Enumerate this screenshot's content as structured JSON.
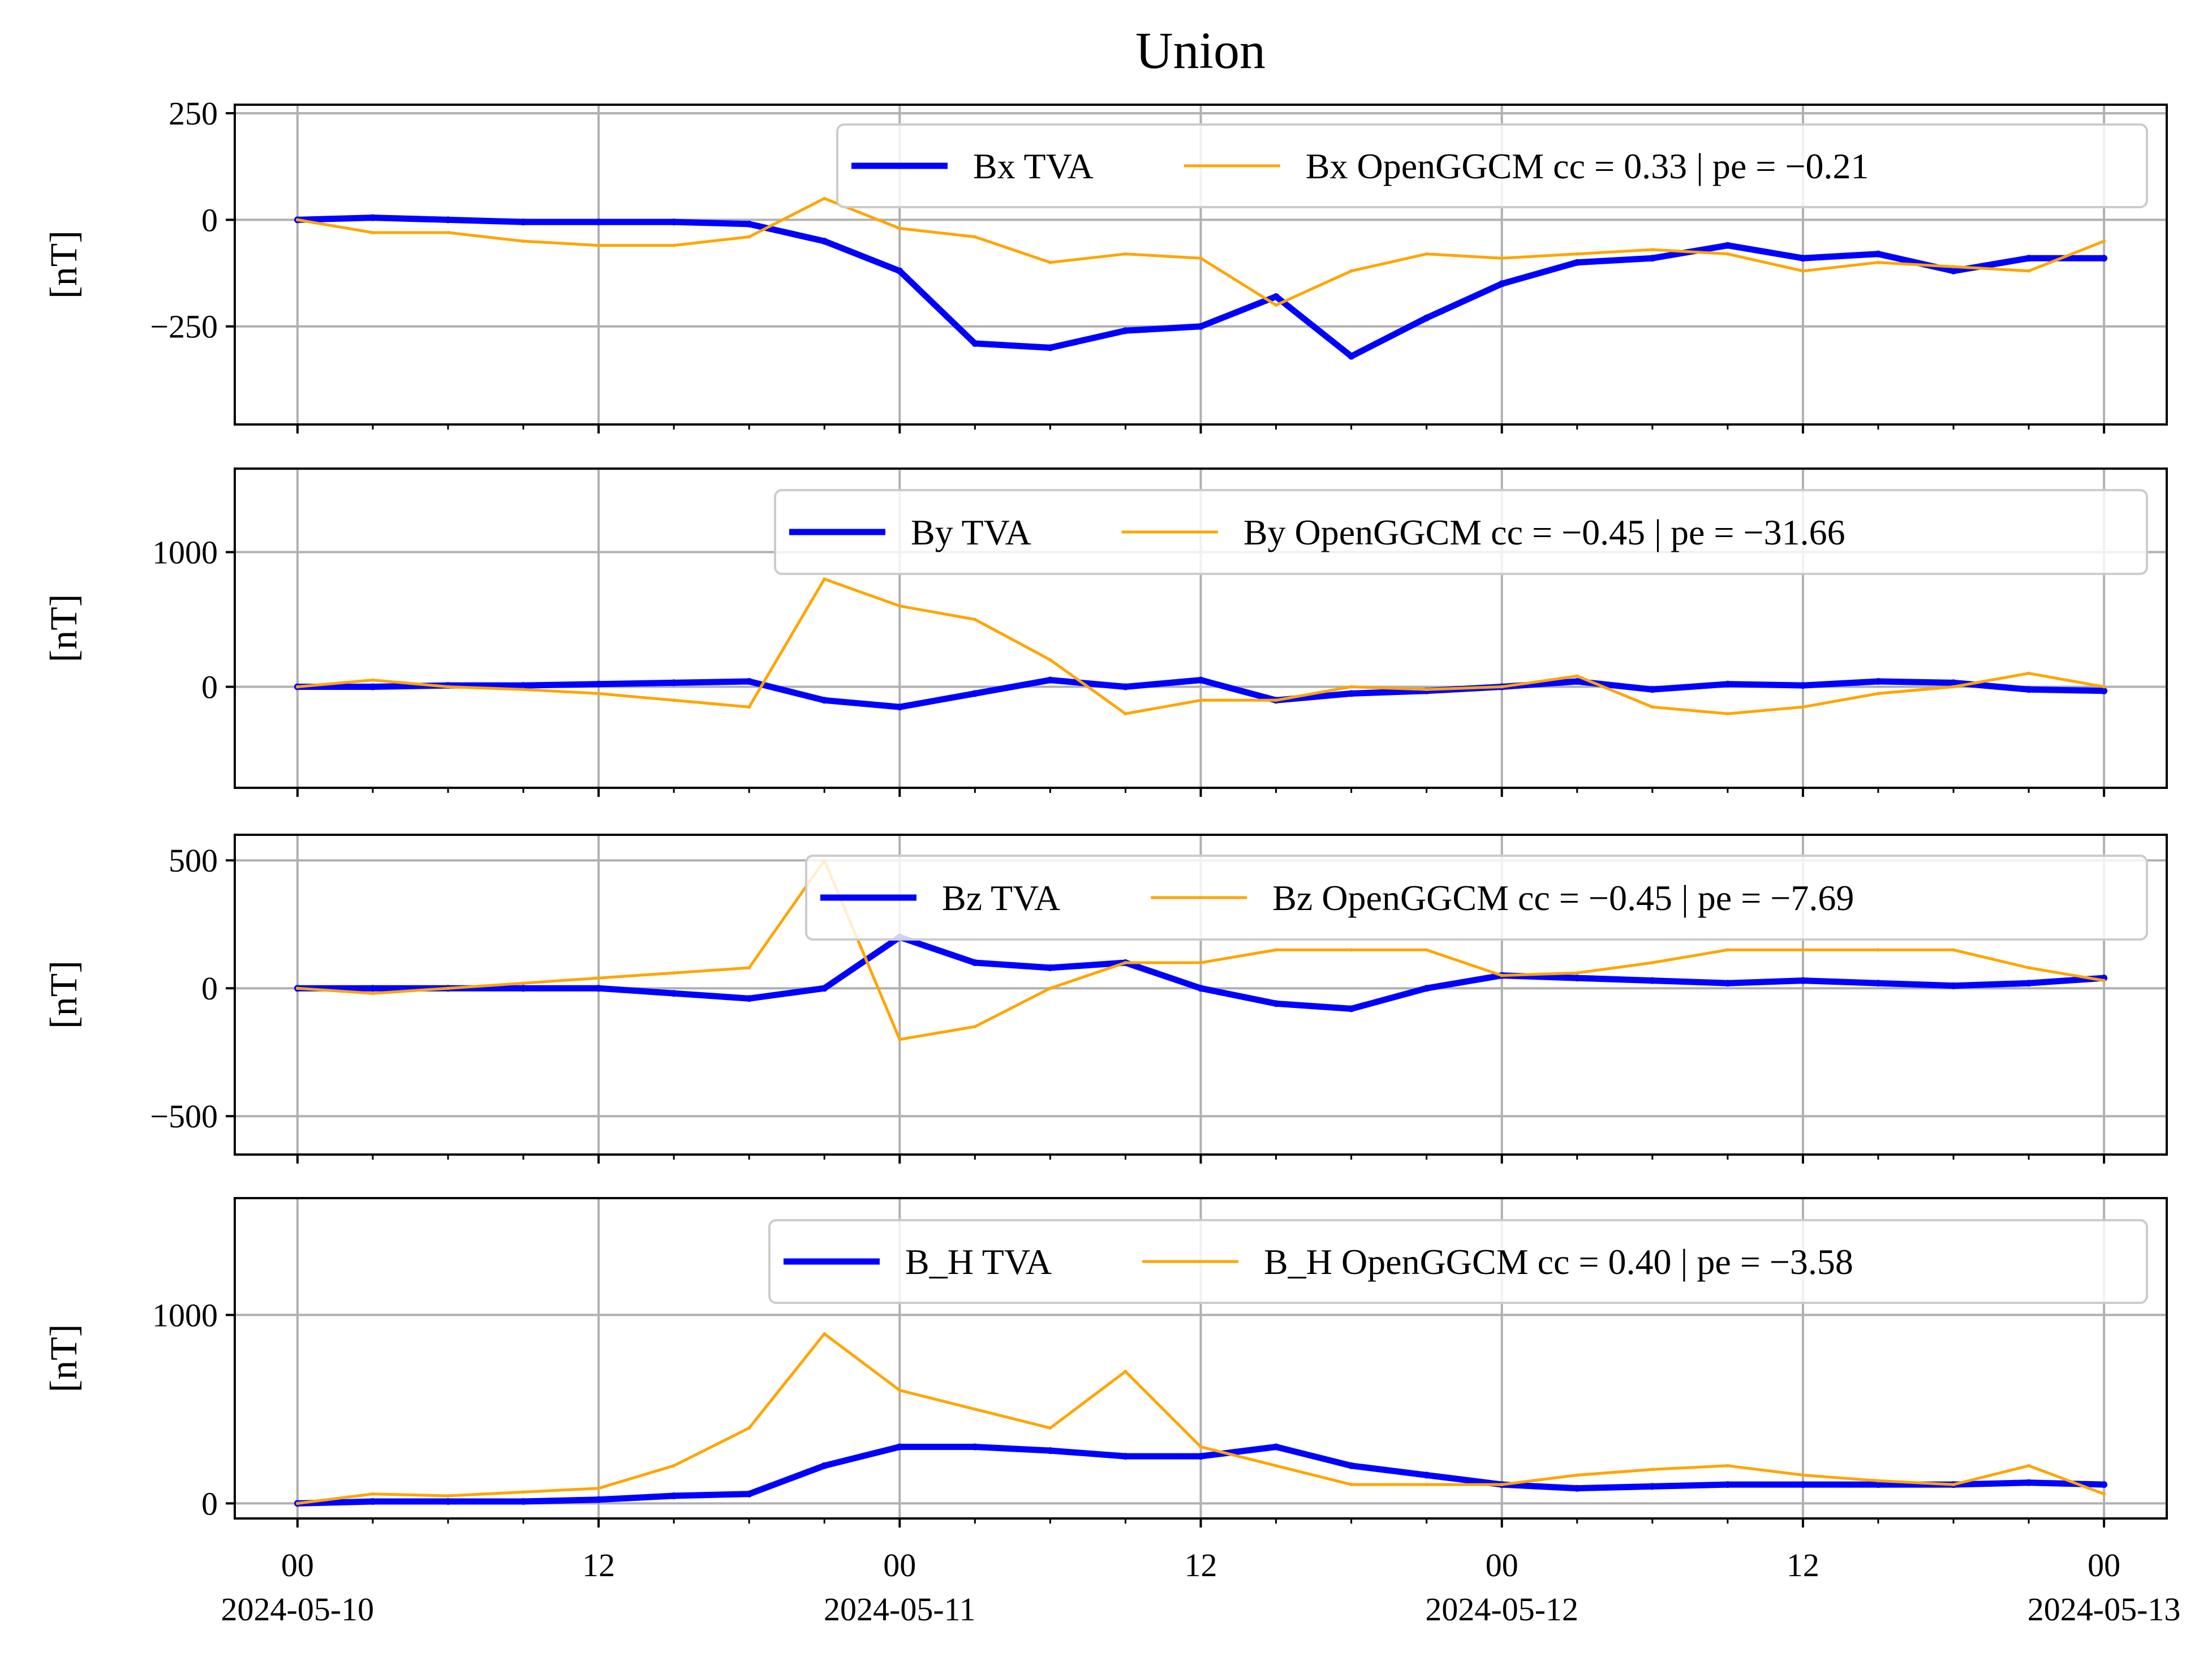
{
  "title": "Union",
  "chart_data": [
    {
      "type": "line",
      "ylabel": "[nT]",
      "ylim": [
        -480,
        270
      ],
      "yticks": [
        250,
        0,
        -250
      ],
      "ytick_labels": [
        "250",
        "0",
        "−250"
      ],
      "grid": true,
      "legend_placement": "top-right",
      "x": [
        "2024-05-10 00:00",
        "2024-05-10 03:00",
        "2024-05-10 06:00",
        "2024-05-10 09:00",
        "2024-05-10 12:00",
        "2024-05-10 15:00",
        "2024-05-10 18:00",
        "2024-05-10 21:00",
        "2024-05-11 00:00",
        "2024-05-11 03:00",
        "2024-05-11 06:00",
        "2024-05-11 09:00",
        "2024-05-11 12:00",
        "2024-05-11 15:00",
        "2024-05-11 18:00",
        "2024-05-11 21:00",
        "2024-05-12 00:00",
        "2024-05-12 03:00",
        "2024-05-12 06:00",
        "2024-05-12 09:00",
        "2024-05-12 12:00",
        "2024-05-12 15:00",
        "2024-05-12 18:00",
        "2024-05-12 21:00",
        "2024-05-13 00:00"
      ],
      "series": [
        {
          "name": "Bx TVA",
          "color": "#0000ff",
          "values": [
            0,
            5,
            0,
            -5,
            -5,
            -5,
            -10,
            -50,
            -120,
            -290,
            -300,
            -260,
            -250,
            -180,
            -320,
            -230,
            -150,
            -100,
            -90,
            -60,
            -90,
            -80,
            -120,
            -90,
            -90
          ]
        },
        {
          "name": "Bx OpenGGCM cc = 0.33 | pe = −0.21",
          "color": "#ffa500",
          "values": [
            0,
            -30,
            -30,
            -50,
            -60,
            -60,
            -40,
            50,
            -20,
            -40,
            -100,
            -80,
            -90,
            -200,
            -120,
            -80,
            -90,
            -80,
            -70,
            -80,
            -120,
            -100,
            -110,
            -120,
            -50
          ]
        }
      ]
    },
    {
      "type": "line",
      "ylabel": "[nT]",
      "ylim": [
        -750,
        1620
      ],
      "yticks": [
        1000,
        0
      ],
      "ytick_labels": [
        "1000",
        "0"
      ],
      "grid": true,
      "legend_placement": "top-right",
      "x": [
        "2024-05-10 00:00",
        "2024-05-10 03:00",
        "2024-05-10 06:00",
        "2024-05-10 09:00",
        "2024-05-10 12:00",
        "2024-05-10 15:00",
        "2024-05-10 18:00",
        "2024-05-10 21:00",
        "2024-05-11 00:00",
        "2024-05-11 03:00",
        "2024-05-11 06:00",
        "2024-05-11 09:00",
        "2024-05-11 12:00",
        "2024-05-11 15:00",
        "2024-05-11 18:00",
        "2024-05-11 21:00",
        "2024-05-12 00:00",
        "2024-05-12 03:00",
        "2024-05-12 06:00",
        "2024-05-12 09:00",
        "2024-05-12 12:00",
        "2024-05-12 15:00",
        "2024-05-12 18:00",
        "2024-05-12 21:00",
        "2024-05-13 00:00"
      ],
      "series": [
        {
          "name": "By TVA",
          "color": "#0000ff",
          "values": [
            0,
            0,
            10,
            10,
            20,
            30,
            40,
            -100,
            -150,
            -50,
            50,
            0,
            50,
            -100,
            -50,
            -30,
            0,
            40,
            -20,
            20,
            10,
            40,
            30,
            -20,
            -30
          ]
        },
        {
          "name": "By OpenGGCM cc = −0.45 | pe = −31.66",
          "color": "#ffa500",
          "values": [
            0,
            50,
            0,
            -20,
            -50,
            -100,
            -150,
            800,
            600,
            500,
            200,
            -200,
            -100,
            -100,
            0,
            -20,
            0,
            80,
            -150,
            -200,
            -150,
            -50,
            0,
            100,
            0
          ]
        }
      ]
    },
    {
      "type": "line",
      "ylabel": "[nT]",
      "ylim": [
        -650,
        600
      ],
      "yticks": [
        500,
        0,
        -500
      ],
      "ytick_labels": [
        "500",
        "0",
        "−500"
      ],
      "grid": true,
      "legend_placement": "top-right",
      "x": [
        "2024-05-10 00:00",
        "2024-05-10 03:00",
        "2024-05-10 06:00",
        "2024-05-10 09:00",
        "2024-05-10 12:00",
        "2024-05-10 15:00",
        "2024-05-10 18:00",
        "2024-05-10 21:00",
        "2024-05-11 00:00",
        "2024-05-11 03:00",
        "2024-05-11 06:00",
        "2024-05-11 09:00",
        "2024-05-11 12:00",
        "2024-05-11 15:00",
        "2024-05-11 18:00",
        "2024-05-11 21:00",
        "2024-05-12 00:00",
        "2024-05-12 03:00",
        "2024-05-12 06:00",
        "2024-05-12 09:00",
        "2024-05-12 12:00",
        "2024-05-12 15:00",
        "2024-05-12 18:00",
        "2024-05-12 21:00",
        "2024-05-13 00:00"
      ],
      "series": [
        {
          "name": "Bz TVA",
          "color": "#0000ff",
          "values": [
            0,
            0,
            0,
            0,
            0,
            -20,
            -40,
            0,
            200,
            100,
            80,
            100,
            0,
            -60,
            -80,
            0,
            50,
            40,
            30,
            20,
            30,
            20,
            10,
            20,
            40
          ]
        },
        {
          "name": "Bz OpenGGCM cc = −0.45 | pe = −7.69",
          "color": "#ffa500",
          "values": [
            0,
            -20,
            0,
            20,
            40,
            60,
            80,
            500,
            -200,
            -150,
            0,
            100,
            100,
            150,
            150,
            150,
            50,
            60,
            100,
            150,
            150,
            150,
            150,
            80,
            30
          ]
        }
      ]
    },
    {
      "type": "line",
      "ylabel": "[nT]",
      "ylim": [
        -80,
        1620
      ],
      "yticks": [
        1000,
        0
      ],
      "ytick_labels": [
        "1000",
        "0"
      ],
      "grid": true,
      "legend_placement": "top-right",
      "x": [
        "2024-05-10 00:00",
        "2024-05-10 03:00",
        "2024-05-10 06:00",
        "2024-05-10 09:00",
        "2024-05-10 12:00",
        "2024-05-10 15:00",
        "2024-05-10 18:00",
        "2024-05-10 21:00",
        "2024-05-11 00:00",
        "2024-05-11 03:00",
        "2024-05-11 06:00",
        "2024-05-11 09:00",
        "2024-05-11 12:00",
        "2024-05-11 15:00",
        "2024-05-11 18:00",
        "2024-05-11 21:00",
        "2024-05-12 00:00",
        "2024-05-12 03:00",
        "2024-05-12 06:00",
        "2024-05-12 09:00",
        "2024-05-12 12:00",
        "2024-05-12 15:00",
        "2024-05-12 18:00",
        "2024-05-12 21:00",
        "2024-05-13 00:00"
      ],
      "series": [
        {
          "name": "B_H TVA",
          "color": "#0000ff",
          "values": [
            0,
            10,
            10,
            10,
            20,
            40,
            50,
            200,
            300,
            300,
            280,
            250,
            250,
            300,
            200,
            150,
            100,
            80,
            90,
            100,
            100,
            100,
            100,
            110,
            100
          ]
        },
        {
          "name": "B_H OpenGGCM cc = 0.40 | pe = −3.58",
          "color": "#ffa500",
          "values": [
            0,
            50,
            40,
            60,
            80,
            200,
            400,
            900,
            600,
            500,
            400,
            700,
            300,
            200,
            100,
            100,
            100,
            150,
            180,
            200,
            150,
            120,
            100,
            200,
            50
          ]
        }
      ]
    }
  ],
  "xaxis": {
    "range": [
      "2024-05-09 21:30",
      "2024-05-13 02:30"
    ],
    "tick_positions": [
      "2024-05-10 00:00",
      "2024-05-10 12:00",
      "2024-05-11 00:00",
      "2024-05-11 12:00",
      "2024-05-12 00:00",
      "2024-05-12 12:00",
      "2024-05-13 00:00"
    ],
    "tick_labels": [
      "00",
      "12",
      "00",
      "12",
      "00",
      "12",
      "00"
    ],
    "date_labels": [
      "2024-05-10",
      "",
      "2024-05-11",
      "",
      "2024-05-12",
      "",
      "2024-05-13"
    ]
  }
}
